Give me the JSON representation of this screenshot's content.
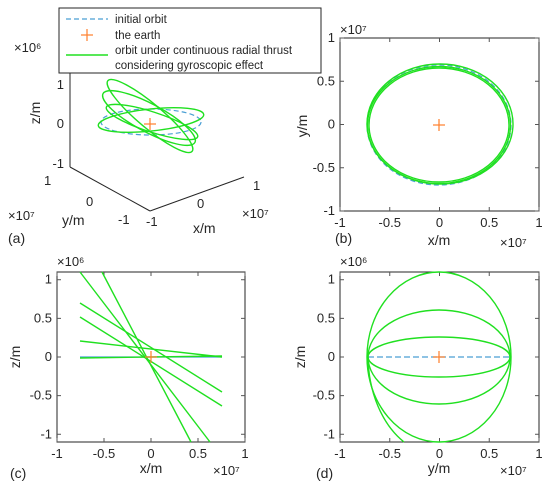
{
  "colors": {
    "initial_orbit": "#4a9fd4",
    "earth": "#ff7f2a",
    "thrust_orbit": "#20e020",
    "axes": "#262626",
    "tick_mark": "#555555"
  },
  "legend": {
    "items": [
      {
        "label": "initial orbit",
        "style": "dashed-line",
        "color": "#4a9fd4"
      },
      {
        "label": "the earth",
        "style": "plus-marker",
        "color": "#ff7f2a"
      },
      {
        "label": "orbit under continuous radial  thrust",
        "style": "solid-line",
        "color": "#20e020"
      },
      {
        "label": "considering gyroscopic effect",
        "style": "continuation",
        "color": ""
      }
    ]
  },
  "panels": [
    {
      "id": "a",
      "tag": "(a)",
      "view": "3d"
    },
    {
      "id": "b",
      "tag": "(b)",
      "view": "x-y"
    },
    {
      "id": "c",
      "tag": "(c)",
      "view": "x-z"
    },
    {
      "id": "d",
      "tag": "(d)",
      "view": "y-z"
    }
  ],
  "chart_data": [
    {
      "type": "line",
      "panel": "(a)",
      "projection": "3d",
      "xlabel": "x/m",
      "ylabel": "y/m",
      "zlabel": "z/m",
      "x_multiplier": "×10⁷",
      "y_multiplier": "×10⁷",
      "z_multiplier": "×10⁶",
      "xticks": [
        "-1",
        "0",
        "1"
      ],
      "yticks": [
        "1",
        "0",
        "-1"
      ],
      "zticks": [
        "1",
        "0",
        "-1"
      ],
      "xlim": [
        -1,
        1
      ],
      "ylim": [
        -1,
        1
      ],
      "zlim": [
        -1.2,
        1.2
      ],
      "grid": false,
      "orbit_radius": 0.72,
      "series": [
        {
          "name": "initial orbit",
          "shape": "circle",
          "plane": "x-y",
          "radius": 0.72,
          "center": [
            0,
            0,
            0
          ]
        },
        {
          "name": "orbit under continuous radial  thrust",
          "shape": "ellipse-family",
          "plane_tilts_deg": [
            5,
            38,
            70
          ],
          "radius": 0.73,
          "z_amplitudes_x1e6": [
            0.15,
            0.55,
            1.0
          ]
        },
        {
          "name": "the earth",
          "shape": "point",
          "x": 0,
          "y": 0,
          "z": 0
        }
      ]
    },
    {
      "type": "line",
      "panel": "(b)",
      "xlabel": "x/m",
      "ylabel": "y/m",
      "x_multiplier": "×10⁷",
      "y_multiplier": "×10⁷",
      "xticks": [
        -1,
        -0.5,
        0,
        0.5,
        1
      ],
      "yticks": [
        -1,
        -0.5,
        0,
        0.5,
        1
      ],
      "xlim": [
        -1,
        1
      ],
      "ylim": [
        -1,
        1
      ],
      "grid": false,
      "series": [
        {
          "name": "initial orbit",
          "shape": "ellipse",
          "center": [
            0,
            0
          ],
          "semi_axes": [
            0.72,
            0.72
          ]
        },
        {
          "name": "orbit under continuous radial  thrust",
          "shape": "ellipse-family",
          "center": [
            0,
            0
          ],
          "semi_axes": [
            [
              0.72,
              0.72
            ],
            [
              0.73,
              0.71
            ],
            [
              0.74,
              0.7
            ]
          ]
        },
        {
          "name": "the earth",
          "shape": "point",
          "x": 0,
          "y": 0
        }
      ]
    },
    {
      "type": "line",
      "panel": "(c)",
      "xlabel": "x/m",
      "ylabel": "z/m",
      "x_multiplier": "×10⁷",
      "y_multiplier": "×10⁶",
      "xticks": [
        -1,
        -0.5,
        0,
        0.5,
        1
      ],
      "yticks": [
        -1,
        -0.5,
        0,
        0.5,
        1
      ],
      "xlim": [
        -1,
        1
      ],
      "ylim": [
        -1.1,
        1.1
      ],
      "grid": false,
      "series": [
        {
          "name": "initial orbit",
          "points": [
            [
              -0.72,
              0
            ],
            [
              0.72,
              0
            ]
          ]
        },
        {
          "name": "orbit under continuous radial  thrust",
          "segments": [
            [
              [
                -0.72,
                0.23
              ],
              [
                0.72,
                0
              ]
            ],
            [
              [
                -0.72,
                0.68
              ],
              [
                0.72,
                -0.45
              ]
            ],
            [
              [
                -0.72,
                0.51
              ],
              [
                0.72,
                -0.62
              ]
            ],
            [
              [
                -0.5,
                1.1
              ],
              [
                0.4,
                -1.1
              ]
            ],
            [
              [
                -0.72,
                1.14
              ],
              [
                0.6,
                -1.1
              ]
            ],
            [
              [
                -0.72,
                0
              ],
              [
                0.72,
                0.02
              ]
            ]
          ]
        },
        {
          "name": "the earth",
          "x": 0,
          "y": 0
        }
      ]
    },
    {
      "type": "line",
      "panel": "(d)",
      "xlabel": "y/m",
      "ylabel": "z/m",
      "x_multiplier": "×10⁷",
      "y_multiplier": "×10⁶",
      "xticks": [
        -1,
        -0.5,
        0,
        0.5,
        1
      ],
      "yticks": [
        -1,
        -0.5,
        0,
        0.5,
        1
      ],
      "xlim": [
        -1,
        1
      ],
      "ylim": [
        -1.1,
        1.1
      ],
      "grid": false,
      "series": [
        {
          "name": "initial orbit",
          "points": [
            [
              -0.72,
              0
            ],
            [
              0.72,
              0
            ]
          ]
        },
        {
          "name": "orbit under continuous radial  thrust",
          "shape": "ellipse-family",
          "center": [
            0,
            0
          ],
          "semi_axis_y": 0.72,
          "semi_axes_z": [
            0.25,
            0.6,
            1.1,
            1.3
          ]
        },
        {
          "name": "the earth",
          "x": 0,
          "y": 0
        }
      ]
    }
  ]
}
